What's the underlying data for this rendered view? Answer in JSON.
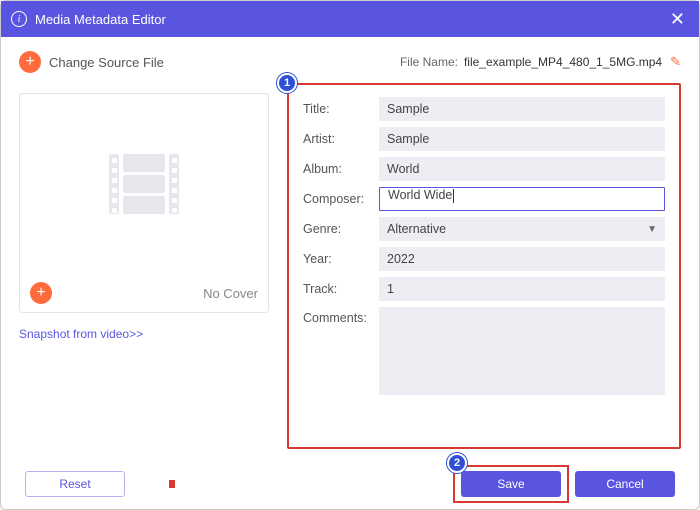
{
  "window": {
    "title": "Media Metadata Editor"
  },
  "top": {
    "change_source_label": "Change Source File",
    "filename_label": "File Name:",
    "filename": "file_example_MP4_480_1_5MG.mp4"
  },
  "cover": {
    "no_cover_label": "No Cover",
    "snapshot_label": "Snapshot from video>>"
  },
  "form": {
    "title_label": "Title:",
    "title_value": "Sample",
    "artist_label": "Artist:",
    "artist_value": "Sample",
    "album_label": "Album:",
    "album_value": "World",
    "composer_label": "Composer:",
    "composer_value": "World Wide",
    "genre_label": "Genre:",
    "genre_value": "Alternative",
    "year_label": "Year:",
    "year_value": "2022",
    "track_label": "Track:",
    "track_value": "1",
    "comments_label": "Comments:",
    "comments_value": ""
  },
  "buttons": {
    "reset": "Reset",
    "save": "Save",
    "cancel": "Cancel"
  },
  "annotations": {
    "badge1": "1",
    "badge2": "2"
  },
  "colors": {
    "accent": "#5a55e0",
    "orange": "#ff6b3d",
    "annotation_red": "#d43a2f",
    "annotation_blue": "#2e4fd6",
    "field_bg": "#eceef3"
  }
}
